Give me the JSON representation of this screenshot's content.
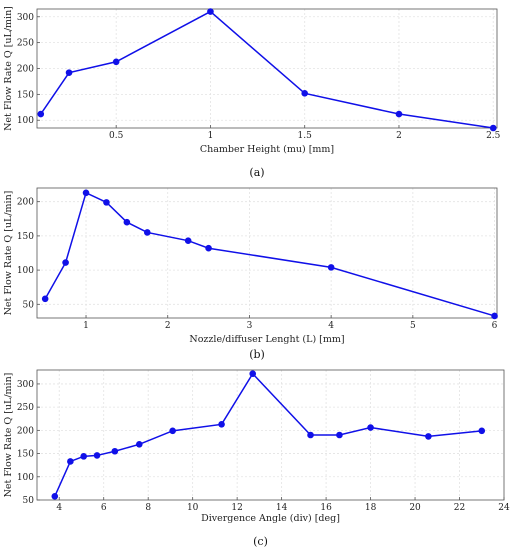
{
  "chart_data": [
    {
      "type": "line",
      "id": "a",
      "caption": "(a)",
      "xlabel": "Chamber Height (mu) [mm]",
      "ylabel": "Net Flow Rate Q [uL/min]",
      "xlim": [
        0.08,
        2.52
      ],
      "ylim": [
        85,
        315
      ],
      "xticks": [
        0.5,
        1,
        1.5,
        2,
        2.5
      ],
      "xtick_labels": [
        "0.5",
        "1",
        "1.5",
        "2",
        "2.5"
      ],
      "yticks": [
        100,
        150,
        200,
        250,
        300
      ],
      "ytick_labels": [
        "100",
        "150",
        "200",
        "250",
        "300"
      ],
      "grid": true,
      "series": [
        {
          "x": [
            0.1,
            0.25,
            0.5,
            1,
            1.5,
            2,
            2.5
          ],
          "y": [
            112,
            192,
            213,
            310,
            152,
            112,
            85
          ]
        }
      ]
    },
    {
      "type": "line",
      "id": "b",
      "caption": "(b)",
      "xlabel": "Nozzle/diffuser Lenght (L) [mm]",
      "ylabel": "Net Flow Rate Q [uL/min]",
      "xlim": [
        0.4,
        6.03
      ],
      "ylim": [
        30,
        220
      ],
      "xticks": [
        1,
        2,
        3,
        4,
        5,
        6
      ],
      "xtick_labels": [
        "1",
        "2",
        "3",
        "4",
        "5",
        "6"
      ],
      "yticks": [
        50,
        100,
        150,
        200
      ],
      "ytick_labels": [
        "50",
        "100",
        "150",
        "200"
      ],
      "grid": true,
      "series": [
        {
          "x": [
            0.5,
            0.75,
            1,
            1.25,
            1.5,
            1.75,
            2.25,
            2.5,
            4,
            6
          ],
          "y": [
            58,
            111,
            213,
            199,
            170,
            155,
            143,
            132,
            104,
            33
          ]
        }
      ]
    },
    {
      "type": "line",
      "id": "c",
      "caption": "(c)",
      "xlabel": "Divergence Angle (div) [deg]",
      "ylabel": "Net Flow Rate Q [uL/min]",
      "xlim": [
        3,
        24
      ],
      "ylim": [
        50,
        330
      ],
      "xticks": [
        4,
        6,
        8,
        10,
        12,
        14,
        16,
        18,
        20,
        22,
        24
      ],
      "xtick_labels": [
        "4",
        "6",
        "8",
        "10",
        "12",
        "14",
        "16",
        "18",
        "20",
        "22",
        "24"
      ],
      "yticks": [
        50,
        100,
        150,
        200,
        250,
        300
      ],
      "ytick_labels": [
        "50",
        "100",
        "150",
        "200",
        "250",
        "300"
      ],
      "grid": true,
      "series": [
        {
          "x": [
            3.8,
            4.5,
            5.1,
            5.7,
            6.5,
            7.6,
            9.1,
            11.3,
            12.7,
            15.3,
            16.6,
            18,
            20.6,
            23
          ],
          "y": [
            58,
            133,
            144,
            146,
            155,
            170,
            199,
            213,
            322,
            190,
            190,
            206,
            187,
            199
          ]
        }
      ]
    }
  ]
}
